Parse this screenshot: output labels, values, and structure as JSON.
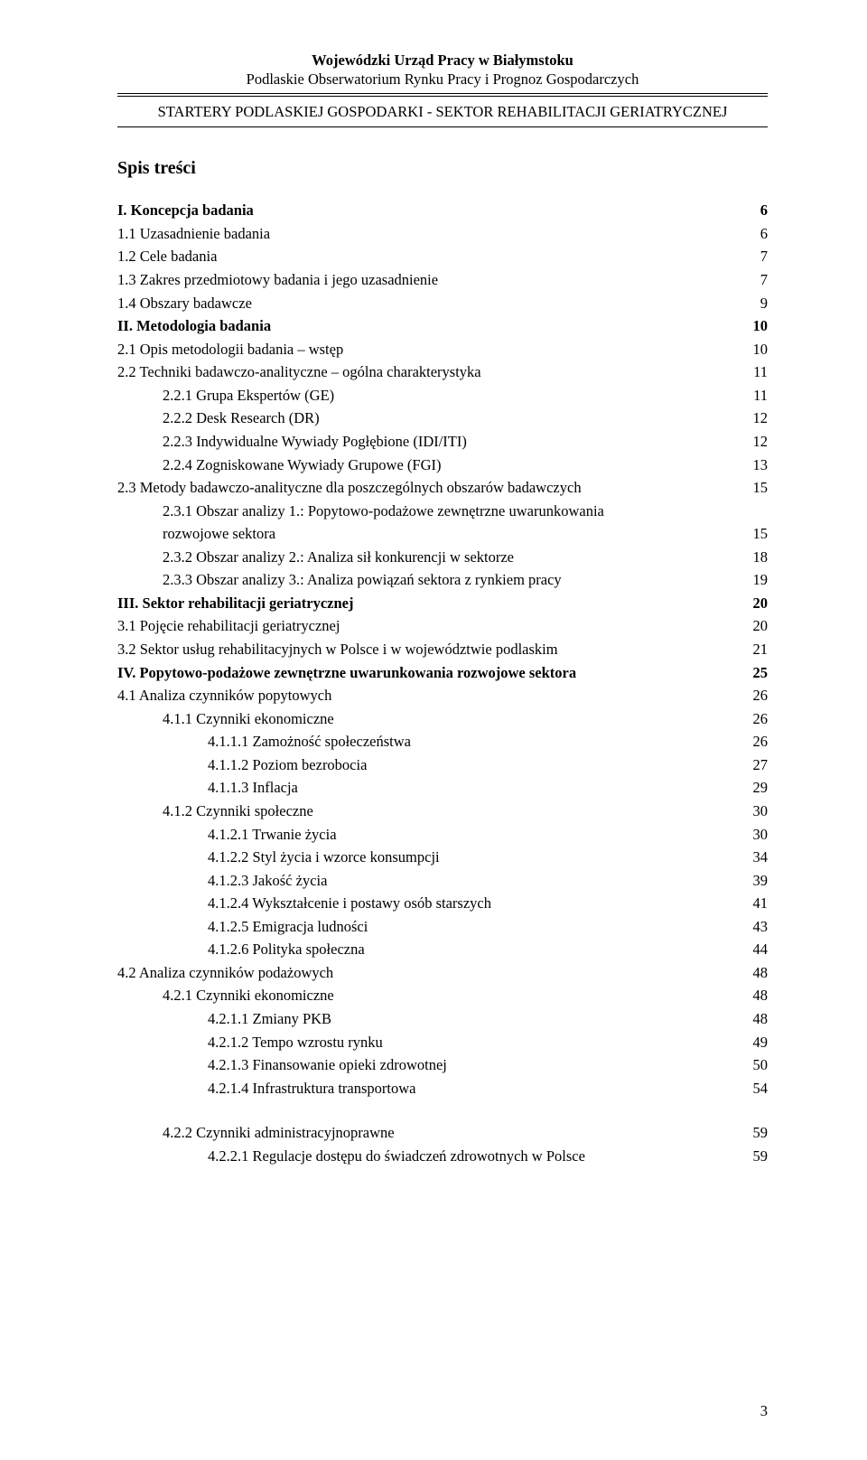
{
  "header": {
    "line1": "Wojewódzki Urząd Pracy w Białymstoku",
    "line2": "Podlaskie Obserwatorium Rynku Pracy i Prognoz Gospodarczych",
    "line3_a": "STARTERY PODLASKIEJ GOSPODARKI - S",
    "line3_b": "EKTOR ",
    "line3_c": "R",
    "line3_d": "EHABILITACJI ",
    "line3_e": "G",
    "line3_f": "ERIATRYCZNEJ"
  },
  "toc_title": "Spis treści",
  "page_number": "3",
  "entries": [
    {
      "label": "I. Koncepcja badania",
      "page": "6",
      "level": 0,
      "bold": true
    },
    {
      "label": "1.1 Uzasadnienie badania",
      "page": "6",
      "level": 0,
      "bold": false
    },
    {
      "label": "1.2 Cele badania",
      "page": "7",
      "level": 0,
      "bold": false
    },
    {
      "label": "1.3 Zakres przedmiotowy badania i jego uzasadnienie",
      "page": "7",
      "level": 0,
      "bold": false
    },
    {
      "label": "1.4 Obszary badawcze",
      "page": "9",
      "level": 0,
      "bold": false
    },
    {
      "label": "II. Metodologia badania",
      "page": "10",
      "level": 0,
      "bold": true
    },
    {
      "label": "2.1 Opis metodologii badania – wstęp",
      "page": "10",
      "level": 0,
      "bold": false
    },
    {
      "label": "2.2 Techniki badawczo-analityczne – ogólna charakterystyka",
      "page": "11",
      "level": 0,
      "bold": false
    },
    {
      "label": "2.2.1 Grupa Ekspertów (GE)",
      "page": "11",
      "level": 1,
      "bold": false
    },
    {
      "label": "2.2.2 Desk Research (DR)",
      "page": "12",
      "level": 1,
      "bold": false
    },
    {
      "label": "2.2.3 Indywidualne Wywiady Pogłębione (IDI/ITI)",
      "page": "12",
      "level": 1,
      "bold": false
    },
    {
      "label": "2.2.4 Zogniskowane Wywiady Grupowe (FGI)",
      "page": "13",
      "level": 1,
      "bold": false
    },
    {
      "label": "2.3 Metody badawczo-analityczne dla poszczególnych obszarów badawczych",
      "page": "15",
      "level": 0,
      "bold": false
    },
    {
      "label": "2.3.1 Obszar analizy 1.: Popytowo-podażowe zewnętrzne uwarunkowania",
      "page": "",
      "level": 1,
      "bold": false,
      "cont": true,
      "cont_label": "rozwojowe sektora",
      "cont_page": "15"
    },
    {
      "label": "2.3.2 Obszar analizy 2.: Analiza sił konkurencji w sektorze",
      "page": "18",
      "level": 1,
      "bold": false
    },
    {
      "label": "2.3.3 Obszar analizy 3.: Analiza powiązań sektora z rynkiem pracy",
      "page": "19",
      "level": 1,
      "bold": false
    },
    {
      "label": "III. Sektor rehabilitacji geriatrycznej",
      "page": "20",
      "level": 0,
      "bold": true
    },
    {
      "label": "3.1 Pojęcie rehabilitacji geriatrycznej",
      "page": "20",
      "level": 0,
      "bold": false
    },
    {
      "label": "3.2 Sektor usług rehabilitacyjnych w Polsce i w województwie podlaskim",
      "page": "21",
      "level": 0,
      "bold": false
    },
    {
      "label": "IV. Popytowo-podażowe zewnętrzne uwarunkowania rozwojowe sektora",
      "page": "25",
      "level": 0,
      "bold": true
    },
    {
      "label": "4.1 Analiza czynników popytowych",
      "page": "26",
      "level": 0,
      "bold": false
    },
    {
      "label": "4.1.1 Czynniki ekonomiczne",
      "page": "26",
      "level": 1,
      "bold": false
    },
    {
      "label": "4.1.1.1 Zamożność społeczeństwa",
      "page": "26",
      "level": 2,
      "bold": false
    },
    {
      "label": "4.1.1.2 Poziom bezrobocia",
      "page": "27",
      "level": 2,
      "bold": false
    },
    {
      "label": "4.1.1.3 Inflacja",
      "page": "29",
      "level": 2,
      "bold": false
    },
    {
      "label": "4.1.2 Czynniki społeczne",
      "page": "30",
      "level": 1,
      "bold": false
    },
    {
      "label": "4.1.2.1 Trwanie życia",
      "page": "30",
      "level": 2,
      "bold": false
    },
    {
      "label": "4.1.2.2 Styl życia i wzorce konsumpcji",
      "page": "34",
      "level": 2,
      "bold": false
    },
    {
      "label": "4.1.2.3 Jakość życia",
      "page": "39",
      "level": 2,
      "bold": false
    },
    {
      "label": "4.1.2.4 Wykształcenie i postawy osób starszych",
      "page": "41",
      "level": 2,
      "bold": false
    },
    {
      "label": "4.1.2.5 Emigracja ludności",
      "page": "43",
      "level": 2,
      "bold": false
    },
    {
      "label": "4.1.2.6 Polityka społeczna",
      "page": "44",
      "level": 2,
      "bold": false
    },
    {
      "label": "4.2 Analiza czynników podażowych",
      "page": "48",
      "level": 0,
      "bold": false
    },
    {
      "label": "4.2.1 Czynniki ekonomiczne",
      "page": "48",
      "level": 1,
      "bold": false
    },
    {
      "label": "4.2.1.1 Zmiany PKB",
      "page": "48",
      "level": 2,
      "bold": false
    },
    {
      "label": "4.2.1.2 Tempo wzrostu rynku",
      "page": "49",
      "level": 2,
      "bold": false
    },
    {
      "label": "4.2.1.3 Finansowanie opieki zdrowotnej",
      "page": "50",
      "level": 2,
      "bold": false
    },
    {
      "label": "4.2.1.4 Infrastruktura transportowa",
      "page": "54",
      "level": 2,
      "bold": false
    },
    {
      "label": "4.2.2 Czynniki administracyjnoprawne",
      "page": "59",
      "level": 1,
      "bold": false,
      "gap": true
    },
    {
      "label": "4.2.2.1 Regulacje dostępu do świadczeń zdrowotnych w Polsce",
      "page": "59",
      "level": 2,
      "bold": false
    }
  ]
}
